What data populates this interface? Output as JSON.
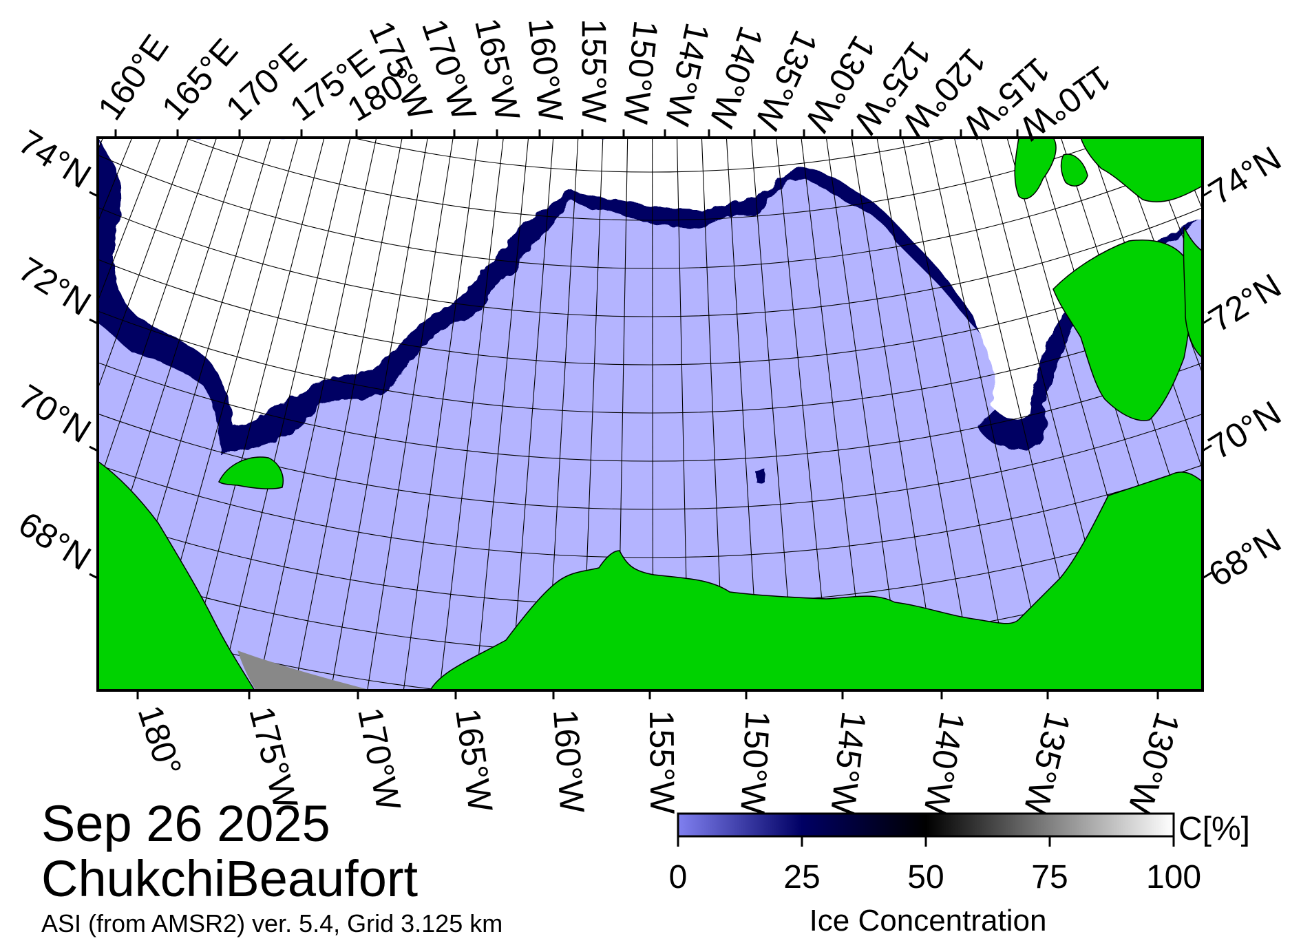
{
  "title": {
    "date": "Sep 26 2025",
    "region": "ChukchiBeaufort",
    "source": "ASI (from AMSR2) ver. 5.4,  Grid 3.125 km"
  },
  "map": {
    "top_lon_labels": [
      "160°E",
      "165°E",
      "170°E",
      "175°E",
      "180°",
      "175°W",
      "170°W",
      "165°W",
      "160°W",
      "155°W",
      "150°W",
      "145°W",
      "140°W",
      "135°W",
      "130°W",
      "125°W",
      "120°W",
      "115°W",
      "110°W"
    ],
    "bottom_lon_labels": [
      "180°",
      "175°W",
      "170°W",
      "165°W",
      "160°W",
      "155°W",
      "150°W",
      "145°W",
      "140°W",
      "135°W",
      "130°W"
    ],
    "left_lat_labels": [
      "74°N",
      "72°N",
      "70°N",
      "68°N"
    ],
    "right_lat_labels": [
      "74°N",
      "72°N",
      "70°N",
      "68°N"
    ],
    "colors": {
      "land": "#00d200",
      "open_water": "#b4b4ff",
      "ice_high": "#ffffff",
      "ice_mid": "#000000",
      "ice_low": "#000064",
      "no_data": "#888888",
      "grid": "#000000"
    }
  },
  "colorbar": {
    "title": "Ice Concentration",
    "unit": "C[%]",
    "ticks": [
      "0",
      "25",
      "50",
      "75",
      "100"
    ],
    "range": [
      0,
      100
    ],
    "stops": [
      {
        "value": 0,
        "color": "#8080f0"
      },
      {
        "value": 25,
        "color": "#000064"
      },
      {
        "value": 50,
        "color": "#000000"
      },
      {
        "value": 75,
        "color": "#808080"
      },
      {
        "value": 100,
        "color": "#ffffff"
      }
    ]
  }
}
